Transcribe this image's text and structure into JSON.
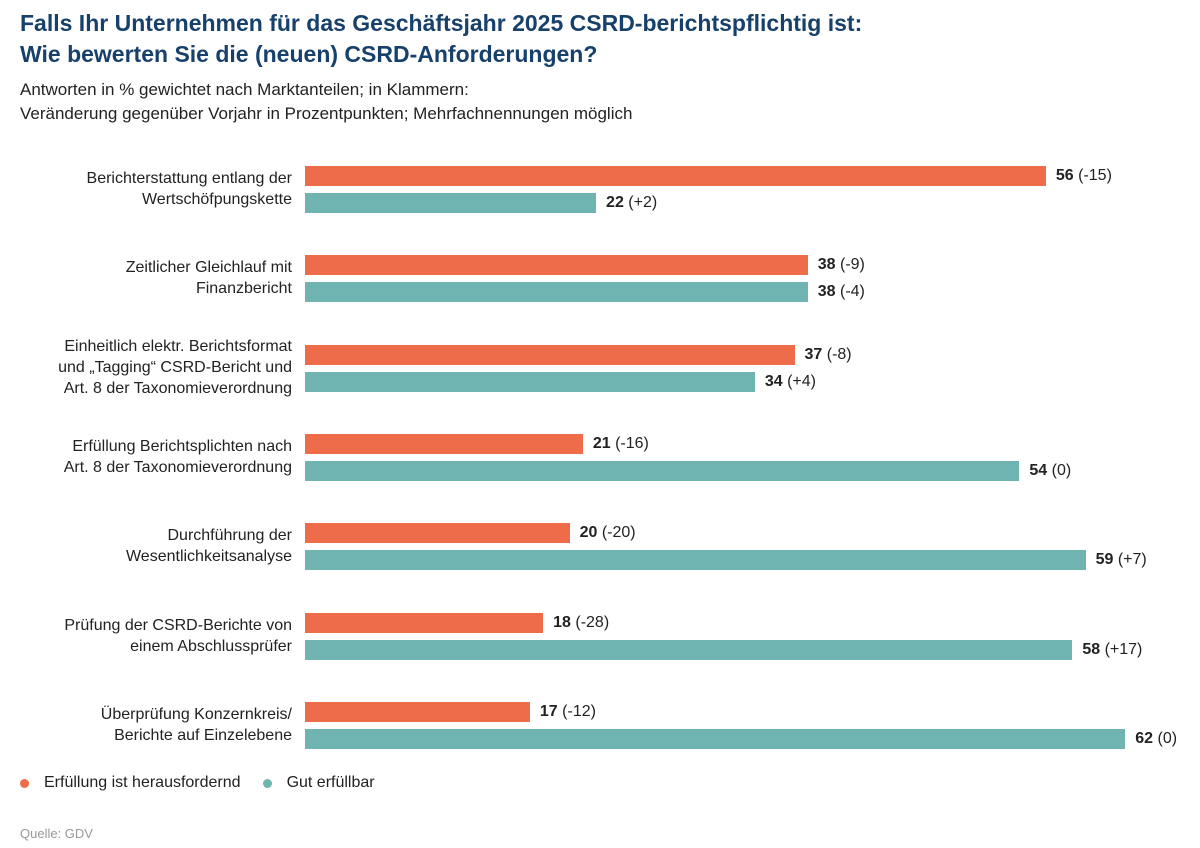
{
  "title": [
    "Falls Ihr Unternehmen für das Geschäftsjahr 2025 CSRD-berichtspflichtig ist:",
    "Wie bewerten Sie die (neuen) CSRD-Anforderungen?"
  ],
  "subtitle": [
    "Antworten in % gewichtet nach Marktanteilen; in Klammern:",
    "Veränderung gegenüber Vorjahr in Prozentpunkten; Mehrfachnennungen möglich"
  ],
  "source": "Quelle: GDV",
  "colors": {
    "challenging": "#ee6c4a",
    "feasible": "#6fb4b1"
  },
  "chart_data": {
    "type": "bar",
    "orientation": "horizontal",
    "title": "Falls Ihr Unternehmen für das Geschäftsjahr 2025 CSRD-berichtspflichtig ist: Wie bewerten Sie die (neuen) CSRD-Anforderungen?",
    "subtitle": "Antworten in % gewichtet nach Marktanteilen; in Klammern: Veränderung gegenüber Vorjahr in Prozentpunkten; Mehrfachnennungen möglich",
    "xlabel": "",
    "ylabel": "",
    "xlim": [
      0,
      70
    ],
    "grid": false,
    "legend_position": "bottom-left",
    "categories": [
      [
        "Berichterstattung entlang der",
        "Wertschöfpungskette"
      ],
      [
        "Zeitlicher Gleichlauf mit",
        "Finanzbericht"
      ],
      [
        "Einheitlich elektr. Berichtsformat",
        "und „Tagging“ CSRD-Bericht und",
        "Art. 8 der Taxonomieverordnung"
      ],
      [
        "Erfüllung Berichtsplichten nach",
        "Art. 8 der Taxonomieverordnung"
      ],
      [
        "Durchführung der",
        "Wesentlichkeitsanalyse"
      ],
      [
        "Prüfung der CSRD-Berichte von",
        "einem Abschlussprüfer"
      ],
      [
        "Überprüfung Konzernkreis/",
        "Berichte auf Einzelebene"
      ]
    ],
    "series": [
      {
        "name": "Erfüllung ist herausfordernd",
        "color": "#ee6c4a",
        "values": [
          56,
          38,
          37,
          21,
          20,
          18,
          17
        ],
        "changes": [
          "(-15)",
          "(-9)",
          "(-8)",
          "(-16)",
          "(-20)",
          "(-28)",
          "(-12)"
        ]
      },
      {
        "name": "Gut erfüllbar",
        "color": "#6fb4b1",
        "values": [
          22,
          38,
          34,
          54,
          59,
          58,
          62
        ],
        "changes": [
          "(+2)",
          "(-4)",
          "(+4)",
          "(0)",
          "(+7)",
          "(+17)",
          "(0)"
        ]
      }
    ]
  }
}
